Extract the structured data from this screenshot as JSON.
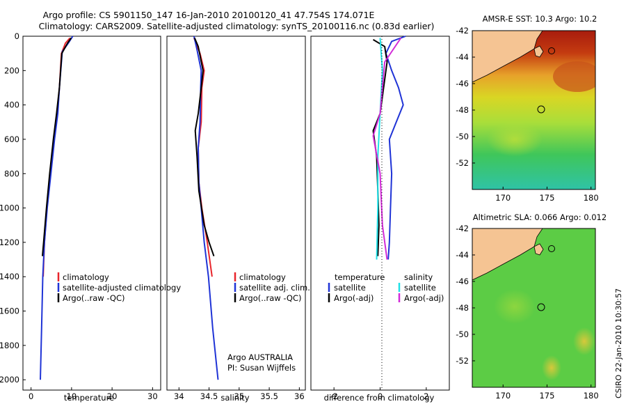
{
  "title_line1": "Argo profile: CS 5901150_147 16-Jan-2010 20100120_41 47.754S 174.071E",
  "title_line2": "Climatology: CARS2009. Satellite-adjusted climatology: synTS_20100116.nc (0.83d earlier)",
  "agency_note": "Argo AUSTRALIA",
  "pi_note": "PI: Susan Wijffels",
  "timestamp": "CSIRO 22-Jan-2010 10:30:57",
  "colors": {
    "red": "#e8252b",
    "blue": "#1f33d6",
    "black": "#000000",
    "cyan": "#1fe0e6",
    "magenta": "#d22ad8",
    "land": "#f5c493"
  },
  "depth_ticks": [
    "0",
    "200",
    "400",
    "600",
    "800",
    "1000",
    "1200",
    "1400",
    "1600",
    "1800",
    "2000"
  ],
  "chart_data": [
    {
      "type": "line",
      "xlabel": "temperature",
      "xlim": [
        -2,
        32
      ],
      "ylim": [
        2060,
        0
      ],
      "xticks": [
        "0",
        "10",
        "20",
        "30"
      ],
      "legend": [
        "climatology",
        "satellite-adjusted climatology",
        "Argo(..raw -QC)"
      ],
      "series": [
        {
          "name": "climatology",
          "color": "red",
          "points": [
            [
              9.6,
              10
            ],
            [
              8.5,
              40
            ],
            [
              7.5,
              100
            ],
            [
              7.0,
              300
            ],
            [
              6.5,
              450
            ],
            [
              5.6,
              600
            ],
            [
              4.8,
              800
            ],
            [
              3.9,
              1000
            ],
            [
              3.3,
              1200
            ],
            [
              3.0,
              1400
            ]
          ]
        },
        {
          "name": "satellite-adjusted climatology",
          "color": "blue",
          "points": [
            [
              10.3,
              0
            ],
            [
              9.2,
              40
            ],
            [
              7.7,
              90
            ],
            [
              7.0,
              300
            ],
            [
              6.6,
              450
            ],
            [
              5.8,
              600
            ],
            [
              4.9,
              800
            ],
            [
              4.0,
              1000
            ],
            [
              3.3,
              1200
            ],
            [
              2.9,
              1400
            ],
            [
              2.6,
              1700
            ],
            [
              2.3,
              2000
            ]
          ]
        },
        {
          "name": "Argo(..raw -QC)",
          "color": "black",
          "points": [
            [
              9.9,
              10
            ],
            [
              9.0,
              40
            ],
            [
              7.6,
              100
            ],
            [
              7.0,
              300
            ],
            [
              6.3,
              450
            ],
            [
              5.5,
              600
            ],
            [
              4.6,
              800
            ],
            [
              3.8,
              1000
            ],
            [
              3.1,
              1200
            ],
            [
              2.8,
              1280
            ]
          ]
        }
      ]
    },
    {
      "type": "line",
      "xlabel": "salinity",
      "xlim": [
        33.8,
        36.1
      ],
      "ylim": [
        2060,
        0
      ],
      "xticks": [
        "34",
        "34.5",
        "35",
        "35.5",
        "36"
      ],
      "legend": [
        "climatology",
        "satellite adj. clim.",
        "Argo(..raw -QC)"
      ],
      "series": [
        {
          "name": "climatology",
          "color": "red",
          "points": [
            [
              34.25,
              10
            ],
            [
              34.35,
              100
            ],
            [
              34.42,
              200
            ],
            [
              34.38,
              300
            ],
            [
              34.37,
              500
            ],
            [
              34.32,
              650
            ],
            [
              34.33,
              850
            ],
            [
              34.38,
              1000
            ],
            [
              34.47,
              1200
            ],
            [
              34.55,
              1400
            ]
          ]
        },
        {
          "name": "satellite adj. clim.",
          "color": "blue",
          "points": [
            [
              34.25,
              0
            ],
            [
              34.3,
              80
            ],
            [
              34.37,
              200
            ],
            [
              34.36,
              300
            ],
            [
              34.35,
              500
            ],
            [
              34.32,
              650
            ],
            [
              34.33,
              850
            ],
            [
              34.37,
              1000
            ],
            [
              34.42,
              1200
            ],
            [
              34.49,
              1400
            ],
            [
              34.56,
              1700
            ],
            [
              34.65,
              2000
            ]
          ]
        },
        {
          "name": "Argo(..raw -QC)",
          "color": "black",
          "points": [
            [
              34.26,
              10
            ],
            [
              34.32,
              60
            ],
            [
              34.4,
              200
            ],
            [
              34.37,
              300
            ],
            [
              34.32,
              450
            ],
            [
              34.27,
              550
            ],
            [
              34.3,
              700
            ],
            [
              34.33,
              900
            ],
            [
              34.42,
              1100
            ],
            [
              34.5,
              1200
            ],
            [
              34.58,
              1280
            ]
          ]
        }
      ]
    },
    {
      "type": "line",
      "xlabel": "difference from climatology",
      "xlim": [
        -3,
        3
      ],
      "ylim": [
        2060,
        0
      ],
      "xticks": [
        "-2",
        "0",
        "2"
      ],
      "legend_group1": {
        "title": "temperature",
        "items": [
          "satellite",
          "Argo(-adj)"
        ]
      },
      "legend_group2": {
        "title": "salinity",
        "items": [
          "satellite",
          "Argo(-adj)"
        ]
      },
      "series": [
        {
          "name": "satellite",
          "color": "blue",
          "points": [
            [
              1.1,
              0
            ],
            [
              0.5,
              30
            ],
            [
              0.25,
              100
            ],
            [
              0.5,
              200
            ],
            [
              0.8,
              300
            ],
            [
              1.0,
              400
            ],
            [
              0.7,
              500
            ],
            [
              0.4,
              600
            ],
            [
              0.5,
              800
            ],
            [
              0.45,
              1000
            ],
            [
              0.4,
              1200
            ],
            [
              0.35,
              1300
            ]
          ]
        },
        {
          "name": "Argo(-adj)",
          "color": "black",
          "points": [
            [
              -0.3,
              20
            ],
            [
              0.2,
              60
            ],
            [
              0.3,
              150
            ],
            [
              0.0,
              450
            ],
            [
              -0.3,
              550
            ],
            [
              -0.15,
              700
            ],
            [
              -0.1,
              900
            ],
            [
              -0.05,
              1100
            ],
            [
              -0.1,
              1280
            ]
          ]
        },
        {
          "name": "satellite",
          "color": "cyan",
          "points": [
            [
              0.0,
              10
            ],
            [
              0.1,
              200
            ],
            [
              0.0,
              450
            ],
            [
              -0.1,
              700
            ],
            [
              -0.1,
              1000
            ],
            [
              -0.15,
              1300
            ]
          ]
        },
        {
          "name": "Argo(-adj)",
          "color": "magenta",
          "points": [
            [
              0.9,
              10
            ],
            [
              0.2,
              150
            ],
            [
              0.0,
              450
            ],
            [
              -0.3,
              580
            ],
            [
              0.0,
              800
            ],
            [
              0.1,
              1100
            ],
            [
              0.3,
              1300
            ]
          ]
        }
      ]
    }
  ],
  "maps": [
    {
      "title": "AMSR-E SST: 10.3 Argo: 10.2",
      "xticks": [
        "170",
        "175",
        "180"
      ],
      "yticks": [
        "-42",
        "-44",
        "-46",
        "-48",
        "-50",
        "-52"
      ],
      "lon": [
        166.5,
        180.5
      ],
      "lat": [
        -54,
        -42
      ]
    },
    {
      "title": "Altimetric SLA: 0.066 Argo: 0.012",
      "xticks": [
        "170",
        "175",
        "180"
      ],
      "yticks": [
        "-42",
        "-44",
        "-46",
        "-48",
        "-50",
        "-52"
      ],
      "lon": [
        166.5,
        180.5
      ],
      "lat": [
        -54,
        -42
      ]
    }
  ]
}
